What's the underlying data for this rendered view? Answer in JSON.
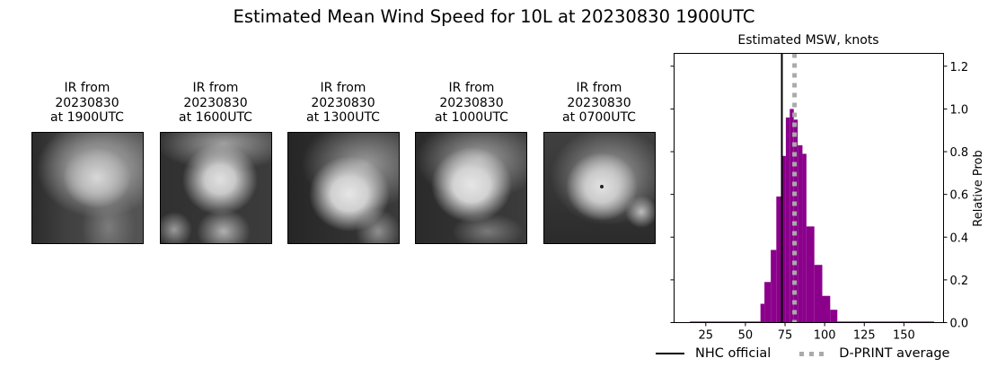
{
  "figure": {
    "suptitle": "Estimated Mean Wind Speed for 10L at 20230830 1900UTC"
  },
  "ir_panels": [
    {
      "line1": "IR from",
      "line2": "20230830",
      "line3": "at 1900UTC"
    },
    {
      "line1": "IR from",
      "line2": "20230830",
      "line3": "at 1600UTC"
    },
    {
      "line1": "IR from",
      "line2": "20230830",
      "line3": "at 1300UTC"
    },
    {
      "line1": "IR from",
      "line2": "20230830",
      "line3": "at 1000UTC"
    },
    {
      "line1": "IR from",
      "line2": "20230830",
      "line3": "at 0700UTC"
    }
  ],
  "legend": {
    "nhc": "NHC official",
    "dprint": "D-PRINT average"
  },
  "colors": {
    "bars": "#8b008b",
    "nhc_line": "#000000",
    "dprint_line": "#aaaaaa"
  },
  "chart_data": {
    "type": "bar",
    "title": "Estimated MSW, knots",
    "xlabel": "",
    "ylabel": "Relative Prob",
    "xlim": [
      5,
      175
    ],
    "ylim": [
      0,
      1.26
    ],
    "xticks": [
      25,
      50,
      75,
      100,
      125,
      150
    ],
    "yticks": [
      0.0,
      0.2,
      0.4,
      0.6,
      0.8,
      1.0,
      1.2
    ],
    "ytick_labels": [
      "0.0",
      "0.2",
      "0.4",
      "0.6",
      "0.8",
      "1.0",
      "1.2"
    ],
    "y_axis_side": "right",
    "bins": [
      {
        "x0": 15,
        "x1": 59.5,
        "value": 0.005
      },
      {
        "x0": 59.5,
        "x1": 62,
        "value": 0.088
      },
      {
        "x0": 62,
        "x1": 66,
        "value": 0.19
      },
      {
        "x0": 66,
        "x1": 69.5,
        "value": 0.34
      },
      {
        "x0": 69.5,
        "x1": 73,
        "value": 0.59
      },
      {
        "x0": 73,
        "x1": 75.5,
        "value": 0.78
      },
      {
        "x0": 75.5,
        "x1": 78,
        "value": 0.96
      },
      {
        "x0": 78,
        "x1": 80.5,
        "value": 1.0
      },
      {
        "x0": 80.5,
        "x1": 83,
        "value": 0.95
      },
      {
        "x0": 83,
        "x1": 86,
        "value": 0.83
      },
      {
        "x0": 86,
        "x1": 88.5,
        "value": 0.79
      },
      {
        "x0": 88.5,
        "x1": 93.5,
        "value": 0.45
      },
      {
        "x0": 93.5,
        "x1": 98.5,
        "value": 0.27
      },
      {
        "x0": 98.5,
        "x1": 103.5,
        "value": 0.125
      },
      {
        "x0": 103.5,
        "x1": 108,
        "value": 0.06
      },
      {
        "x0": 108,
        "x1": 169,
        "value": 0.005
      }
    ],
    "vlines": [
      {
        "name": "NHC official",
        "x": 73,
        "style": "solid",
        "color": "#000000"
      },
      {
        "name": "D-PRINT average",
        "x": 81,
        "style": "dotted",
        "color": "#aaaaaa"
      }
    ],
    "legend_position": "bottom"
  }
}
